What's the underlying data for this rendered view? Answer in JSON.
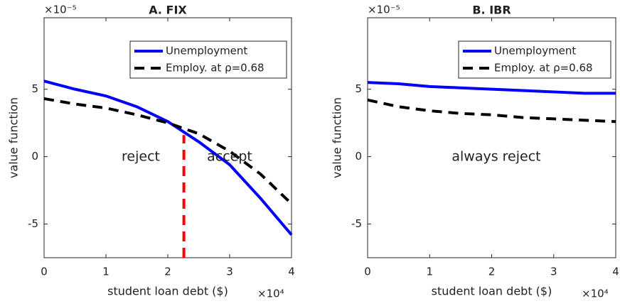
{
  "chart_data": [
    {
      "type": "line",
      "title": "A. FIX",
      "xlabel": "student loan debt ($)",
      "ylabel": "value function",
      "x_multiplier": "×10⁴",
      "y_multiplier": "×10⁻⁵",
      "x": [
        0,
        0.5,
        1,
        1.5,
        2,
        2.5,
        3,
        3.5,
        4
      ],
      "series": [
        {
          "name": "Unemployment",
          "color": "#0000ff",
          "dash": "solid",
          "values": [
            5.6,
            5.0,
            4.5,
            3.7,
            2.6,
            1.1,
            -0.6,
            -3.1,
            -5.8
          ]
        },
        {
          "name": "Employ. at ρ=0.68",
          "color": "#000000",
          "dash": "dashed",
          "values": [
            4.3,
            3.9,
            3.6,
            3.1,
            2.5,
            1.7,
            0.4,
            -1.3,
            -3.5
          ]
        }
      ],
      "threshold_x": 2.26,
      "threshold_top": 1.6,
      "threshold_color": "#ff0000",
      "annotations": [
        "reject",
        "accept"
      ],
      "xlim": [
        0,
        4
      ],
      "ylim": [
        -7.5,
        10.3
      ],
      "xticks": [
        0,
        1,
        2,
        3,
        4
      ],
      "yticks": [
        -5,
        0,
        5
      ]
    },
    {
      "type": "line",
      "title": "B. IBR",
      "xlabel": "student loan debt ($)",
      "ylabel": "value function",
      "x_multiplier": "×10⁴",
      "y_multiplier": "×10⁻⁵",
      "x": [
        0,
        0.5,
        1,
        1.5,
        2,
        2.5,
        3,
        3.5,
        4
      ],
      "series": [
        {
          "name": "Unemployment",
          "color": "#0000ff",
          "dash": "solid",
          "values": [
            5.5,
            5.4,
            5.2,
            5.1,
            5.0,
            4.9,
            4.8,
            4.7,
            4.7
          ]
        },
        {
          "name": "Employ. at ρ=0.68",
          "color": "#000000",
          "dash": "dashed",
          "values": [
            4.2,
            3.7,
            3.4,
            3.2,
            3.1,
            2.9,
            2.8,
            2.7,
            2.6
          ]
        }
      ],
      "annotations": [
        "always reject"
      ],
      "xlim": [
        0,
        4
      ],
      "ylim": [
        -7.5,
        10.3
      ],
      "xticks": [
        0,
        1,
        2,
        3,
        4
      ],
      "yticks": [
        -5,
        0,
        5
      ]
    }
  ]
}
